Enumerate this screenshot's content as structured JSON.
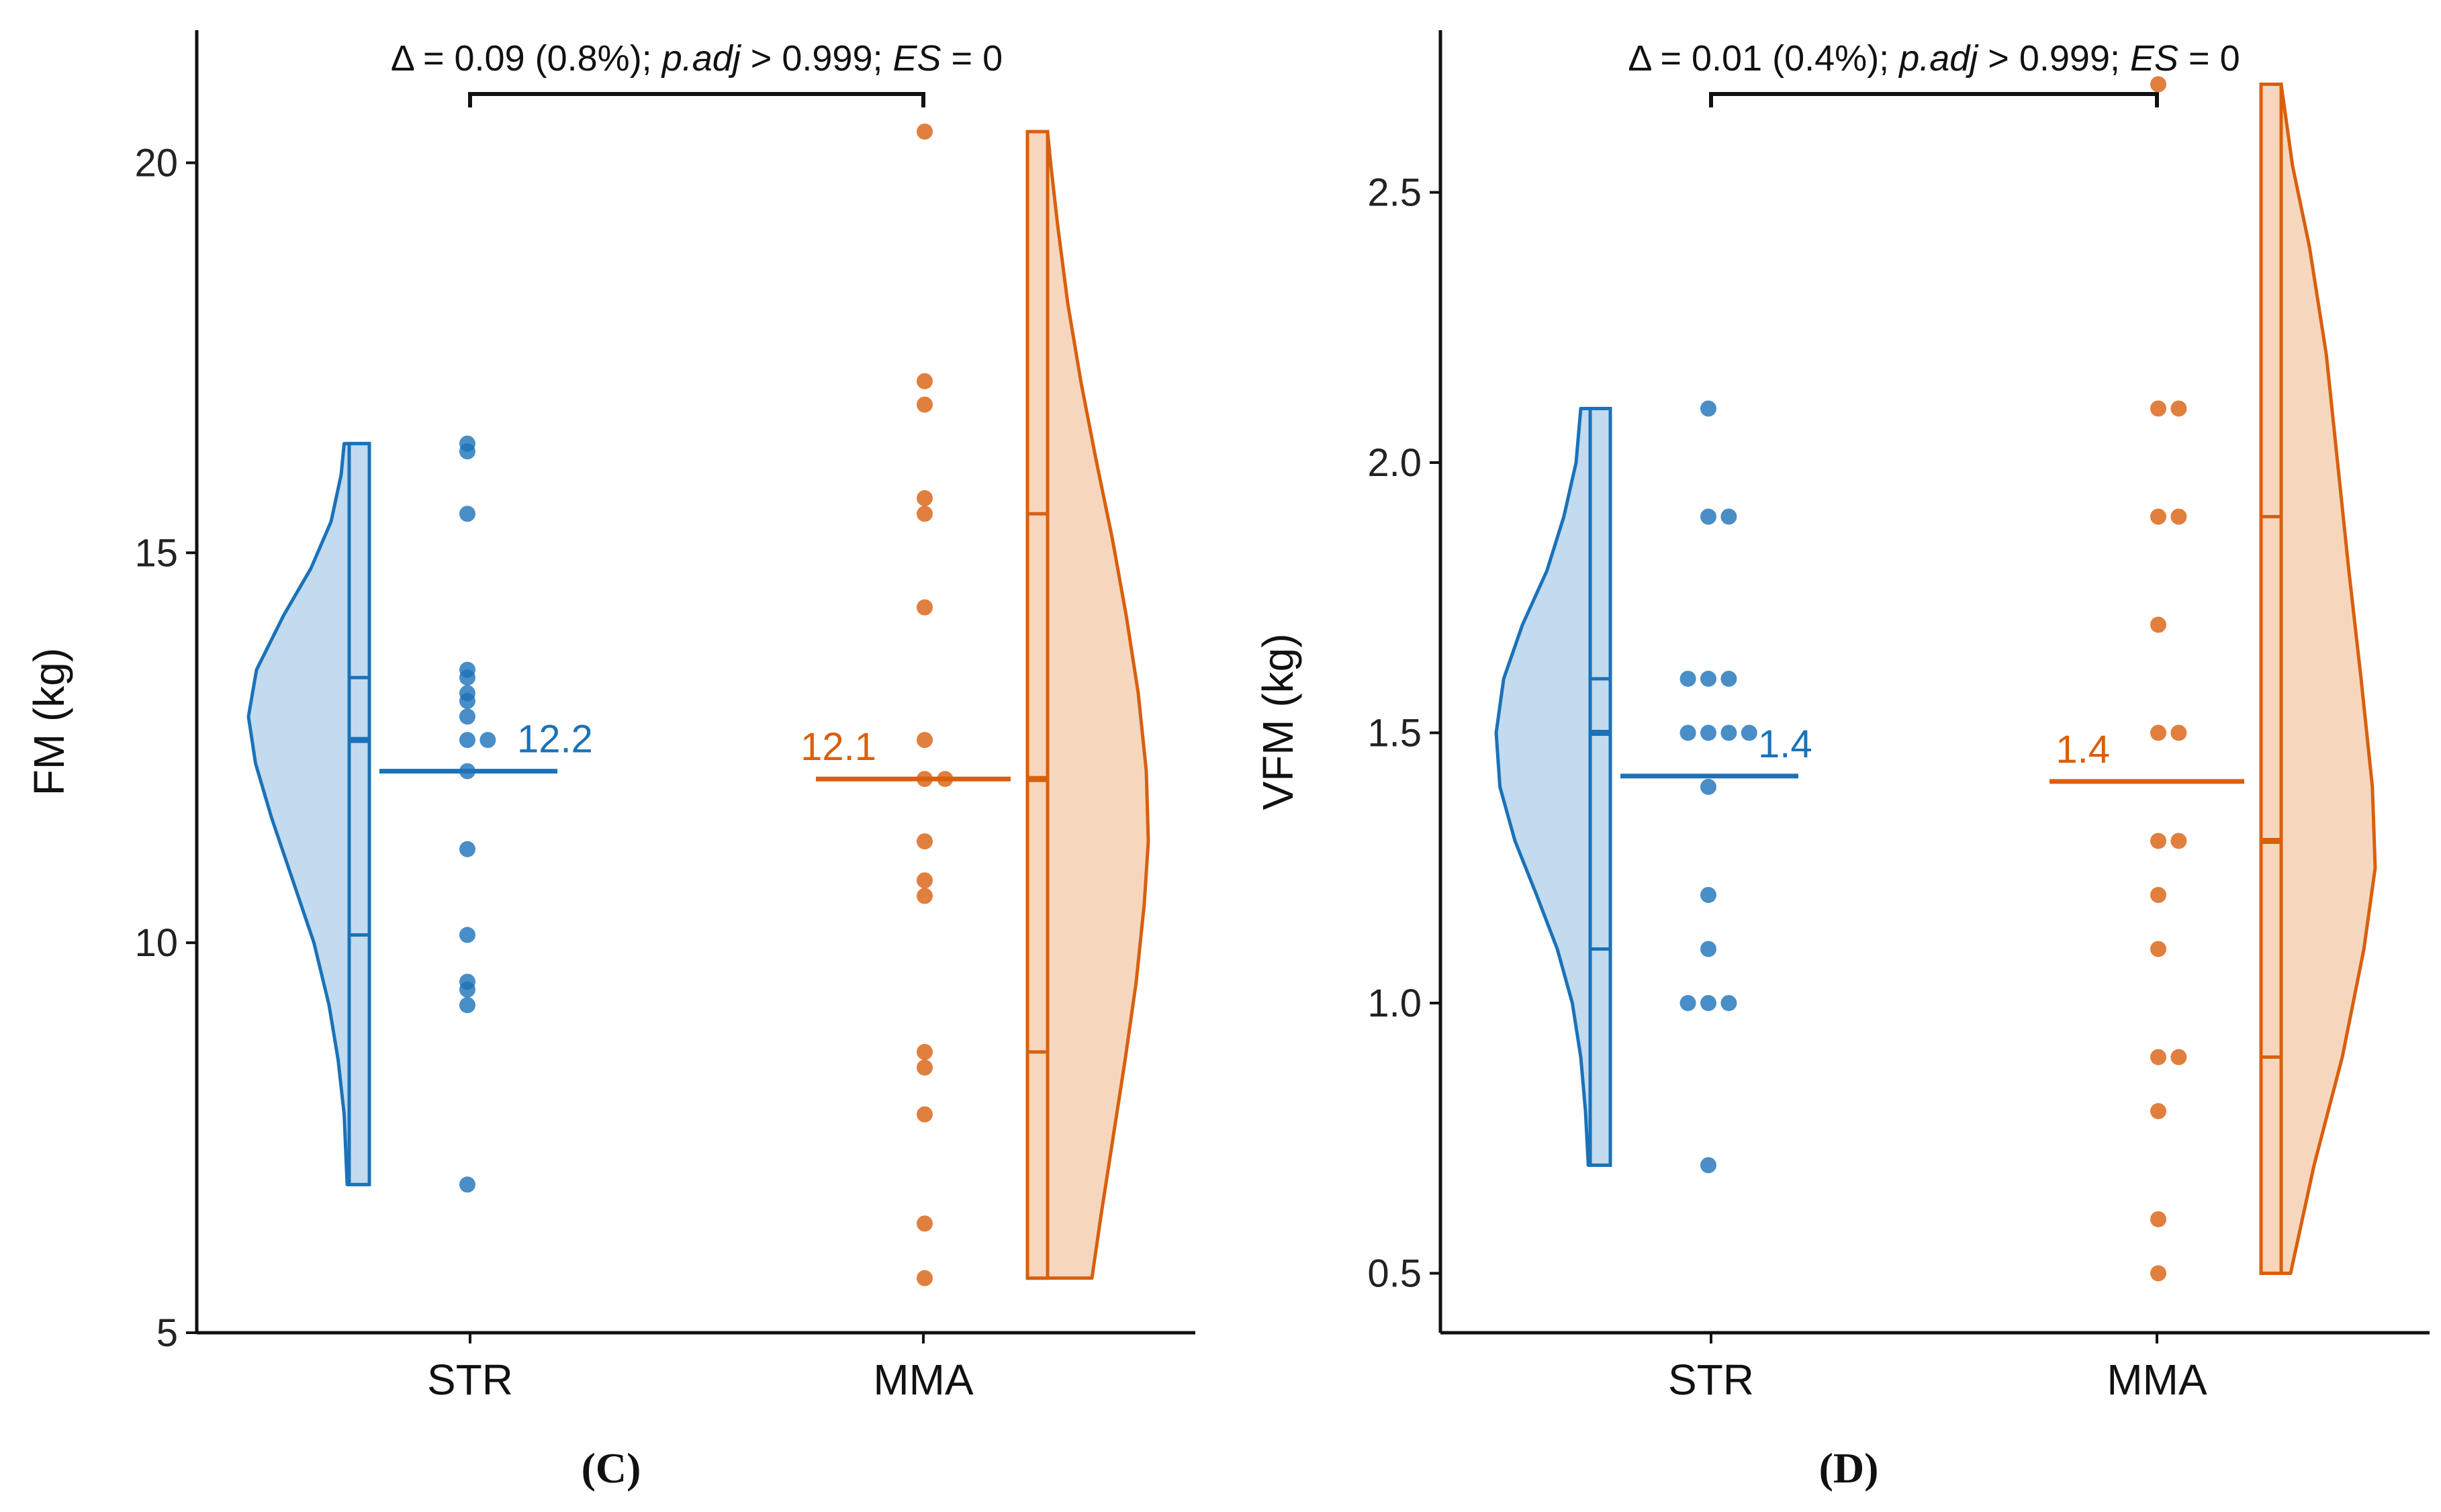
{
  "colors": {
    "str": "#1B72B8",
    "str_fill": "#C2DBEF",
    "mma": "#D95F0E",
    "mma_fill": "#F6D7BE",
    "axis": "#111111"
  },
  "chart_data": [
    {
      "type": "raincloud",
      "panel_label": "(C)",
      "ylabel": "FM (kg)",
      "ylim": [
        5,
        21.7
      ],
      "yticks": [
        5,
        10,
        15,
        20
      ],
      "categories": [
        "STR",
        "MMA"
      ],
      "comparison": {
        "delta": "Δ = 0.09 (0.8%); ",
        "padj_label": "p.adj",
        "padj_value": " > 0.999; ",
        "es_label": "ES",
        "es_value": " = 0"
      },
      "groups": [
        {
          "name": "STR",
          "points": [
            16.3,
            16.4,
            15.5,
            13.2,
            13.1,
            13.4,
            13.5,
            12.6,
            12.6,
            12.9,
            12.2,
            11.2,
            10.1,
            9.5,
            9.4,
            9.2,
            6.9
          ],
          "mean": 12.2,
          "mean_label": "12.2",
          "median": 12.6,
          "q1": 10.1,
          "q3": 13.4,
          "min": 6.9,
          "max": 16.4,
          "density": [
            [
              6.9,
              0.02
            ],
            [
              7.8,
              0.05
            ],
            [
              8.5,
              0.11
            ],
            [
              9.2,
              0.2
            ],
            [
              10.0,
              0.35
            ],
            [
              10.8,
              0.56
            ],
            [
              11.6,
              0.77
            ],
            [
              12.3,
              0.93
            ],
            [
              12.9,
              1.0
            ],
            [
              13.5,
              0.92
            ],
            [
              14.2,
              0.65
            ],
            [
              14.8,
              0.38
            ],
            [
              15.4,
              0.18
            ],
            [
              16.0,
              0.08
            ],
            [
              16.4,
              0.05
            ]
          ]
        },
        {
          "name": "MMA",
          "points": [
            20.4,
            17.2,
            16.9,
            15.7,
            15.5,
            14.3,
            12.6,
            12.1,
            12.1,
            11.3,
            10.8,
            10.6,
            8.6,
            8.4,
            7.8,
            6.4,
            5.7
          ],
          "mean": 12.1,
          "mean_label": "12.1",
          "median": 12.1,
          "q1": 8.6,
          "q3": 15.5,
          "min": 5.7,
          "max": 20.4,
          "density": [
            [
              5.7,
              0.44
            ],
            [
              6.5,
              0.53
            ],
            [
              7.5,
              0.65
            ],
            [
              8.5,
              0.77
            ],
            [
              9.5,
              0.88
            ],
            [
              10.5,
              0.96
            ],
            [
              11.3,
              1.0
            ],
            [
              12.2,
              0.98
            ],
            [
              13.2,
              0.9
            ],
            [
              14.2,
              0.78
            ],
            [
              15.2,
              0.64
            ],
            [
              16.2,
              0.48
            ],
            [
              17.2,
              0.33
            ],
            [
              18.2,
              0.2
            ],
            [
              19.2,
              0.1
            ],
            [
              20.0,
              0.03
            ],
            [
              20.4,
              0.0
            ]
          ]
        }
      ]
    },
    {
      "type": "raincloud",
      "panel_label": "(D)",
      "ylabel": "VFM (kg)",
      "ylim": [
        0.39,
        2.8
      ],
      "yticks": [
        0.5,
        1.0,
        1.5,
        2.0,
        2.5
      ],
      "ytick_labels": [
        "0.5",
        "1.0",
        "1.5",
        "2.0",
        "2.5"
      ],
      "categories": [
        "STR",
        "MMA"
      ],
      "comparison": {
        "delta": "Δ = 0.01 (0.4%); ",
        "padj_label": "p.adj",
        "padj_value": " > 0.999; ",
        "es_label": "ES",
        "es_value": " = 0"
      },
      "groups": [
        {
          "name": "STR",
          "points": [
            2.1,
            1.9,
            1.9,
            1.6,
            1.6,
            1.6,
            1.5,
            1.5,
            1.5,
            1.5,
            1.4,
            1.2,
            1.1,
            1.0,
            1.0,
            1.0,
            0.7
          ],
          "mean": 1.42,
          "mean_label": "1.4",
          "median": 1.5,
          "q1": 1.1,
          "q3": 1.6,
          "min": 0.7,
          "max": 2.1,
          "density": [
            [
              0.7,
              0.02
            ],
            [
              0.8,
              0.05
            ],
            [
              0.9,
              0.1
            ],
            [
              1.0,
              0.19
            ],
            [
              1.1,
              0.35
            ],
            [
              1.2,
              0.57
            ],
            [
              1.3,
              0.8
            ],
            [
              1.4,
              0.96
            ],
            [
              1.5,
              1.0
            ],
            [
              1.6,
              0.92
            ],
            [
              1.7,
              0.72
            ],
            [
              1.8,
              0.46
            ],
            [
              1.9,
              0.28
            ],
            [
              2.0,
              0.15
            ],
            [
              2.1,
              0.1
            ]
          ]
        },
        {
          "name": "MMA",
          "points": [
            2.7,
            2.1,
            2.1,
            1.9,
            1.9,
            1.7,
            1.5,
            1.5,
            1.3,
            1.3,
            1.2,
            1.1,
            0.9,
            0.9,
            0.8,
            0.6,
            0.5
          ],
          "mean": 1.41,
          "mean_label": "1.4",
          "median": 1.3,
          "q1": 0.9,
          "q3": 1.9,
          "min": 0.5,
          "max": 2.7,
          "density": [
            [
              0.5,
              0.1
            ],
            [
              0.7,
              0.35
            ],
            [
              0.9,
              0.65
            ],
            [
              1.1,
              0.88
            ],
            [
              1.25,
              1.0
            ],
            [
              1.4,
              0.97
            ],
            [
              1.6,
              0.85
            ],
            [
              1.8,
              0.72
            ],
            [
              2.0,
              0.6
            ],
            [
              2.2,
              0.48
            ],
            [
              2.4,
              0.3
            ],
            [
              2.55,
              0.12
            ],
            [
              2.7,
              0.0
            ]
          ]
        }
      ]
    }
  ]
}
